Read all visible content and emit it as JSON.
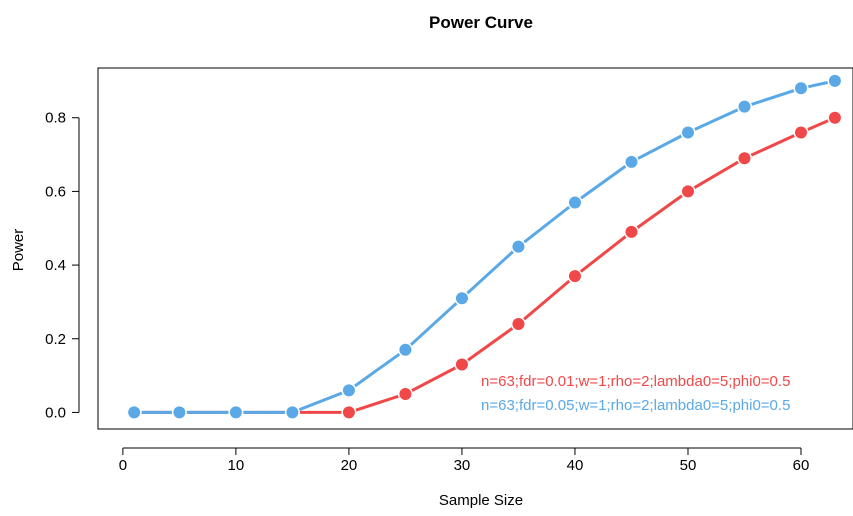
{
  "chart_data": {
    "type": "line",
    "title": "Power Curve",
    "xlabel": "Sample Size",
    "ylabel": "Power",
    "xlim": [
      -2.2,
      64.6
    ],
    "ylim": [
      -0.045,
      0.935
    ],
    "xticks": [
      0,
      10,
      20,
      30,
      40,
      50,
      60
    ],
    "yticks": [
      0.0,
      0.2,
      0.4,
      0.6,
      0.8
    ],
    "xtick_labels": [
      "0",
      "10",
      "20",
      "30",
      "40",
      "50",
      "60"
    ],
    "ytick_labels": [
      "0.0",
      "0.2",
      "0.4",
      "0.6",
      "0.8"
    ],
    "grid": false,
    "legend_position": "bottom-right",
    "series": [
      {
        "name": "n=63;fdr=0.01;w=1;rho=2;lambda0=5;phi0=0.5",
        "color": "#f04848",
        "x": [
          1,
          5,
          10,
          15,
          20,
          25,
          30,
          35,
          40,
          45,
          50,
          55,
          60,
          63
        ],
        "values": [
          0,
          0,
          0,
          0,
          0,
          0.05,
          0.13,
          0.24,
          0.37,
          0.49,
          0.6,
          0.69,
          0.76,
          0.8
        ]
      },
      {
        "name": "n=63;fdr=0.05;w=1;rho=2;lambda0=5;phi0=0.5",
        "color": "#5aa8e6",
        "x": [
          1,
          5,
          10,
          15,
          20,
          25,
          30,
          35,
          40,
          45,
          50,
          55,
          60,
          63
        ],
        "values": [
          0,
          0,
          0,
          0,
          0.06,
          0.17,
          0.31,
          0.45,
          0.57,
          0.68,
          0.76,
          0.83,
          0.88,
          0.9
        ]
      }
    ]
  }
}
